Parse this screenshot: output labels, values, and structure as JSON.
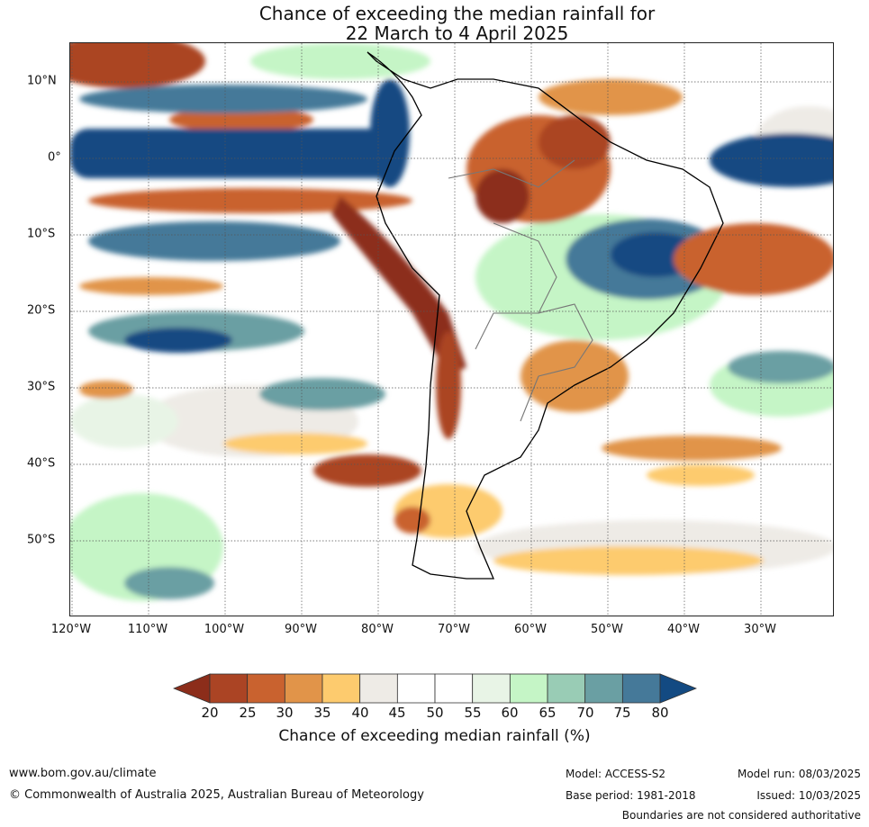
{
  "title_line1": "Chance of exceeding the median rainfall for",
  "title_line2": "22 March to 4 April 2025",
  "lat_labels": [
    "10°N",
    "0°",
    "10°S",
    "20°S",
    "30°S",
    "40°S",
    "50°S"
  ],
  "lon_labels": [
    "120°W",
    "110°W",
    "100°W",
    "90°W",
    "80°W",
    "70°W",
    "60°W",
    "50°W",
    "40°W",
    "30°W"
  ],
  "colorbar": {
    "ticks": [
      "20",
      "25",
      "30",
      "35",
      "40",
      "45",
      "50",
      "55",
      "60",
      "65",
      "70",
      "75",
      "80"
    ],
    "colors": [
      "#8c2d1a",
      "#ab4424",
      "#c9622f",
      "#e19449",
      "#fdcb6e",
      "#eeebe6",
      "#ffffff",
      "#ffffff",
      "#e8f4e6",
      "#c5f5c6",
      "#99ccb5",
      "#6a9fa3",
      "#457999",
      "#134a82"
    ],
    "title": "Chance of exceeding median rainfall (%)"
  },
  "footer": {
    "website": "www.bom.gov.au/climate",
    "copyright": "© Commonwealth of Australia 2025, Australian Bureau of Meteorology",
    "model": "Model: ACCESS-S2",
    "base_period": "Base period: 1981-2018",
    "model_run": "Model run: 08/03/2025",
    "issued": "Issued: 10/03/2025",
    "disclaimer": "Boundaries are not considered authoritative"
  }
}
